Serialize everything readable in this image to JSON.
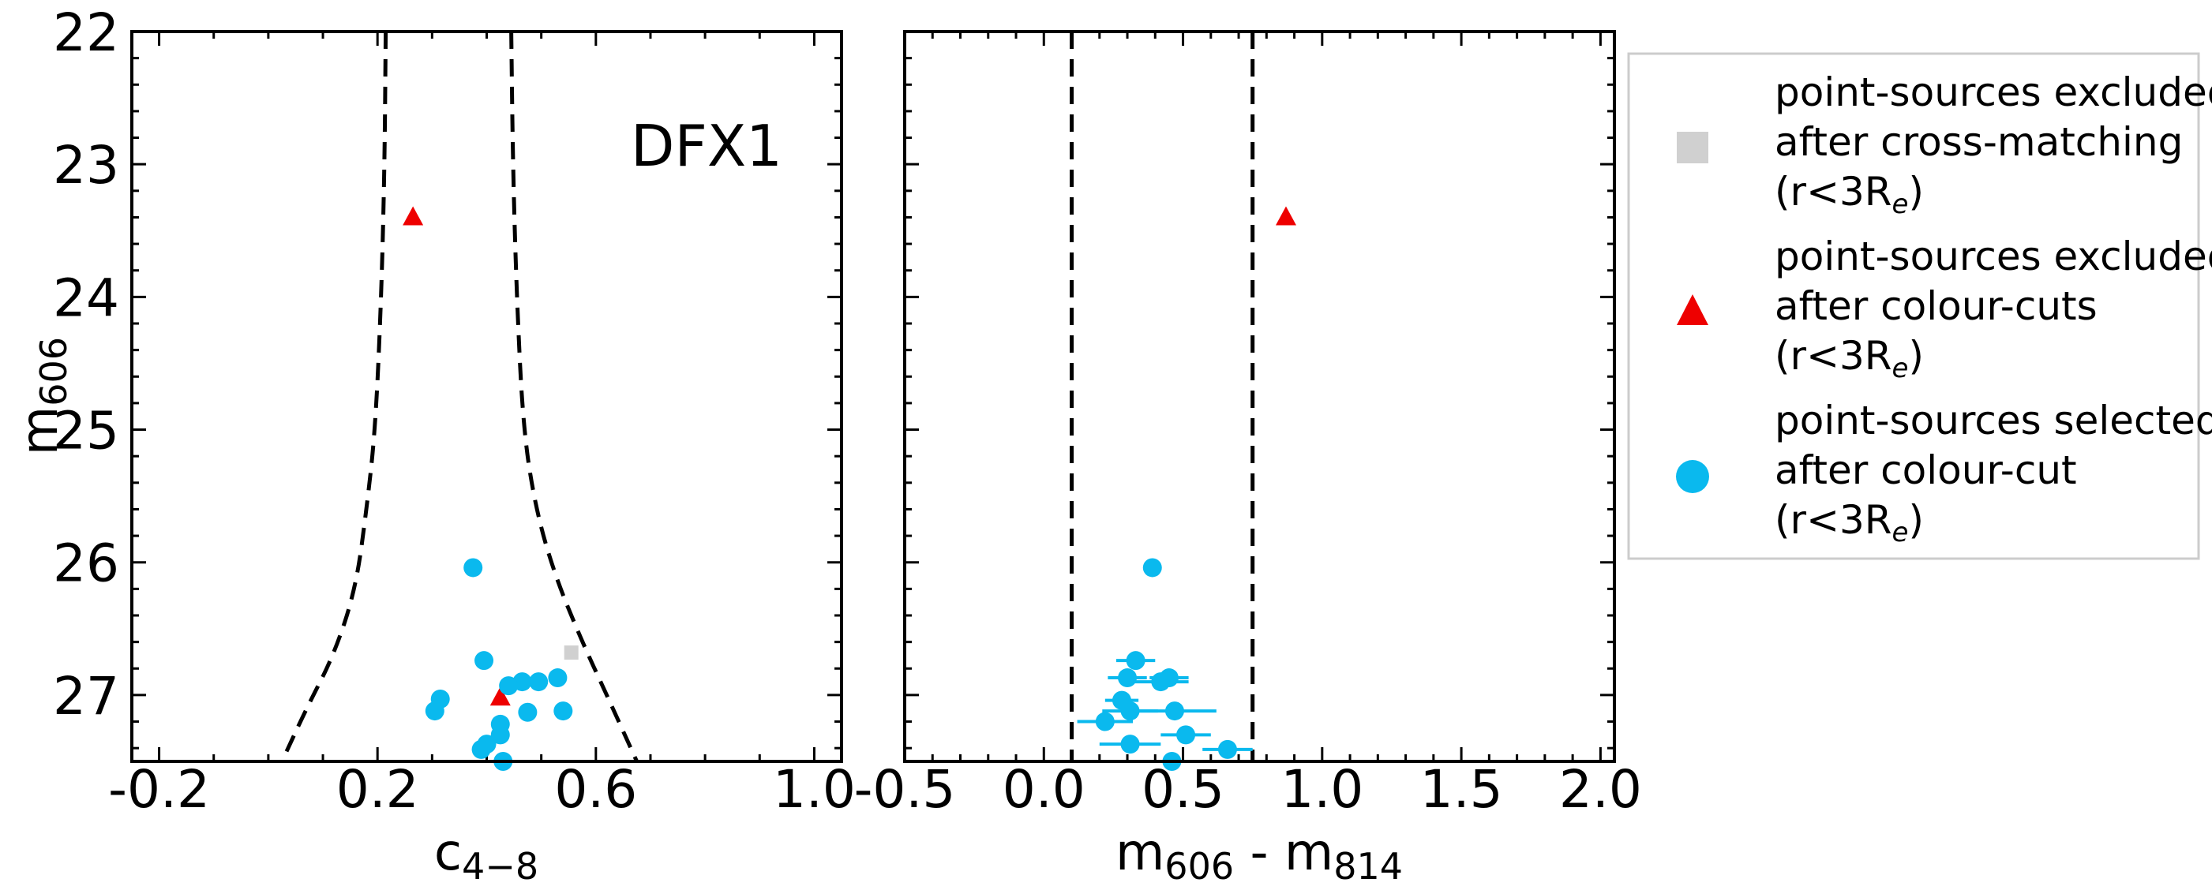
{
  "chart_data": [
    {
      "type": "scatter",
      "panel_label": "DFX1",
      "xlabel": "c",
      "xlabel_sub": "4−8",
      "ylabel": "m",
      "ylabel_sub": "606",
      "xlim": [
        -0.25,
        1.05
      ],
      "ylim": [
        27.5,
        22
      ],
      "xticks": [
        -0.2,
        0.2,
        0.6,
        1.0
      ],
      "xtick_labels": [
        "-0.2",
        "0.2",
        "0.6",
        "1.0"
      ],
      "yticks": [
        22,
        23,
        24,
        25,
        26,
        27
      ],
      "ytick_labels": [
        "22",
        "23",
        "24",
        "25",
        "26",
        "27"
      ],
      "boundary": {
        "style": "dashed",
        "color": "#000000",
        "left": [
          [
            0.215,
            22.0
          ],
          [
            0.213,
            23.0
          ],
          [
            0.207,
            24.0
          ],
          [
            0.196,
            25.0
          ],
          [
            0.18,
            25.6
          ],
          [
            0.16,
            26.2
          ],
          [
            0.12,
            26.7
          ],
          [
            0.07,
            27.1
          ],
          [
            0.025,
            27.5
          ]
        ],
        "right": [
          [
            0.445,
            22.0
          ],
          [
            0.448,
            23.0
          ],
          [
            0.455,
            24.0
          ],
          [
            0.467,
            25.0
          ],
          [
            0.49,
            25.6
          ],
          [
            0.525,
            26.1
          ],
          [
            0.575,
            26.6
          ],
          [
            0.62,
            27.0
          ],
          [
            0.675,
            27.5
          ]
        ]
      },
      "series": [
        {
          "marker": "square",
          "color": "#d0d0d0",
          "points": [
            [
              0.555,
              26.68
            ]
          ]
        },
        {
          "marker": "triangle",
          "color": "#ee0000",
          "points": [
            [
              0.265,
              23.4
            ],
            [
              0.425,
              27.02
            ]
          ]
        },
        {
          "marker": "circle",
          "color": "#0ab9ee",
          "points": [
            [
              0.375,
              26.04
            ],
            [
              0.395,
              26.74
            ],
            [
              0.53,
              26.87
            ],
            [
              0.465,
              26.9
            ],
            [
              0.495,
              26.9
            ],
            [
              0.44,
              26.93
            ],
            [
              0.315,
              27.03
            ],
            [
              0.305,
              27.12
            ],
            [
              0.475,
              27.13
            ],
            [
              0.54,
              27.12
            ],
            [
              0.425,
              27.22
            ],
            [
              0.425,
              27.3
            ],
            [
              0.4,
              27.37
            ],
            [
              0.39,
              27.41
            ],
            [
              0.43,
              27.5
            ]
          ]
        }
      ]
    },
    {
      "type": "scatter",
      "xlabel": "m",
      "xlabel_sub1": "606",
      "xlabel_mid": " - m",
      "xlabel_sub2": "814",
      "xlim": [
        -0.5,
        2.05
      ],
      "ylim": [
        27.5,
        22
      ],
      "xticks": [
        -0.5,
        0.0,
        0.5,
        1.0,
        1.5,
        2.0
      ],
      "xtick_labels": [
        "-0.5",
        "0.0",
        "0.5",
        "1.0",
        "1.5",
        "2.0"
      ],
      "yticks": [
        22,
        23,
        24,
        25,
        26,
        27
      ],
      "vlines": [
        0.1,
        0.75
      ],
      "series": [
        {
          "marker": "triangle",
          "color": "#ee0000",
          "points": [
            [
              0.87,
              23.4
            ]
          ]
        },
        {
          "marker": "circle",
          "color": "#0ab9ee",
          "points": [
            [
              0.39,
              26.04,
              0.02
            ],
            [
              0.33,
              26.74,
              0.07
            ],
            [
              0.3,
              26.87,
              0.07
            ],
            [
              0.42,
              26.9,
              0.1
            ],
            [
              0.45,
              26.87,
              0.07
            ],
            [
              0.28,
              27.04,
              0.06
            ],
            [
              0.31,
              27.12,
              0.1
            ],
            [
              0.47,
              27.12,
              0.15
            ],
            [
              0.22,
              27.2,
              0.1
            ],
            [
              0.51,
              27.3,
              0.09
            ],
            [
              0.31,
              27.37,
              0.11
            ],
            [
              0.66,
              27.41,
              0.09
            ],
            [
              0.46,
              27.5,
              0.12
            ]
          ]
        }
      ]
    }
  ],
  "legend": {
    "entries": [
      {
        "marker": "square",
        "color": "#d0d0d0",
        "line1": "point-sources excluded",
        "line2": "after cross-matching",
        "line3": "(r<3R",
        "line3_sub": "e",
        "line3_end": ")"
      },
      {
        "marker": "triangle",
        "color": "#ee0000",
        "line1": "point-sources excluded",
        "line2": "after colour-cuts",
        "line3": "(r<3R",
        "line3_sub": "e",
        "line3_end": ")"
      },
      {
        "marker": "circle",
        "color": "#0ab9ee",
        "line1": "point-sources selected",
        "line2": "after colour-cut",
        "line3": "(r<3R",
        "line3_sub": "e",
        "line3_end": ")"
      }
    ]
  }
}
